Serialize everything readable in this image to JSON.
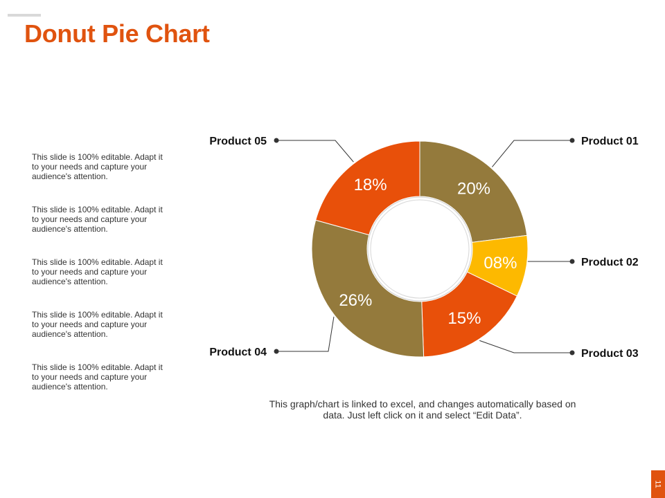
{
  "slide": {
    "title": "Donut Pie Chart",
    "notes": [
      "This slide is 100% editable. Adapt it to your needs and capture your audience's attention.",
      "This slide is 100% editable. Adapt it to your needs and capture your audience's attention.",
      "This slide is 100% editable. Adapt it to your needs and capture your audience's attention.",
      "This slide is 100% editable. Adapt it to your needs and capture your audience's attention.",
      "This slide is 100% editable. Adapt it to your needs and capture your audience's attention."
    ],
    "caption": "This graph/chart is linked to excel, and changes automatically based on data. Just left click on it and select “Edit Data”.",
    "page_number": "11"
  },
  "chart_data": {
    "type": "pie",
    "title": "",
    "donut": true,
    "slices": [
      {
        "name": "Product 01",
        "value": 20,
        "label": "20%",
        "color": "#947a3c"
      },
      {
        "name": "Product 02",
        "value": 8,
        "label": "08%",
        "color": "#fdb900"
      },
      {
        "name": "Product 03",
        "value": 15,
        "label": "15%",
        "color": "#e8500a"
      },
      {
        "name": "Product 04",
        "value": 26,
        "label": "26%",
        "color": "#947a3c"
      },
      {
        "name": "Product 05",
        "value": 18,
        "label": "18%",
        "color": "#e8500a"
      }
    ]
  }
}
